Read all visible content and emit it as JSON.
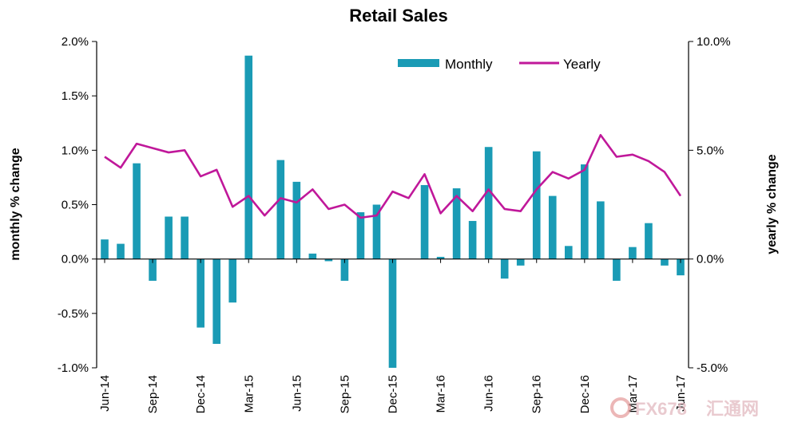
{
  "chart_data": {
    "type": "bar+line",
    "title": "Retail Sales",
    "ylabel_left": "monthly % change",
    "ylabel_right": "yearly % change",
    "ylim_left": [
      -1.0,
      2.0
    ],
    "ylim_right": [
      -5.0,
      10.0
    ],
    "yticks_left": [
      "2.0%",
      "1.5%",
      "1.0%",
      "0.5%",
      "0.0%",
      "-0.5%",
      "-1.0%"
    ],
    "yticks_right": [
      "10.0%",
      "5.0%",
      "0.0%",
      "-5.0%"
    ],
    "x_tick_labels": [
      "Jun-14",
      "Sep-14",
      "Dec-14",
      "Mar-15",
      "Jun-15",
      "Sep-15",
      "Dec-15",
      "Mar-16",
      "Jun-16",
      "Sep-16",
      "Dec-16",
      "Mar-17",
      "Jun-17"
    ],
    "categories": [
      "Jun-14",
      "Jul-14",
      "Aug-14",
      "Sep-14",
      "Oct-14",
      "Nov-14",
      "Dec-14",
      "Jan-15",
      "Feb-15",
      "Mar-15",
      "Apr-15",
      "May-15",
      "Jun-15",
      "Jul-15",
      "Aug-15",
      "Sep-15",
      "Oct-15",
      "Nov-15",
      "Dec-15",
      "Jan-16",
      "Feb-16",
      "Mar-16",
      "Apr-16",
      "May-16",
      "Jun-16",
      "Jul-16",
      "Aug-16",
      "Sep-16",
      "Oct-16",
      "Nov-16",
      "Dec-16",
      "Jan-17",
      "Feb-17",
      "Mar-17",
      "Apr-17",
      "May-17",
      "Jun-17"
    ],
    "legend_position": "top-right",
    "grid": false,
    "series": [
      {
        "name": "Monthly",
        "type": "bar",
        "axis": "left",
        "color": "#1a9bb5",
        "values": [
          0.18,
          0.14,
          0.88,
          -0.2,
          0.39,
          0.39,
          -0.63,
          -0.78,
          -0.4,
          1.87,
          0.0,
          0.91,
          0.71,
          0.05,
          -0.02,
          -0.2,
          0.43,
          0.5,
          -1.0,
          0.0,
          0.68,
          0.02,
          0.65,
          0.35,
          1.03,
          -0.18,
          -0.06,
          0.99,
          0.58,
          0.12,
          0.87,
          0.53,
          -0.2,
          0.11,
          0.33,
          -0.06,
          -0.15
        ]
      },
      {
        "name": "Yearly",
        "type": "line",
        "axis": "right",
        "color": "#c0189a",
        "values": [
          4.7,
          4.2,
          5.3,
          5.1,
          4.9,
          5.0,
          3.8,
          4.1,
          2.4,
          2.9,
          2.0,
          2.8,
          2.6,
          3.2,
          2.3,
          2.5,
          1.9,
          2.0,
          3.1,
          2.8,
          3.9,
          2.1,
          2.9,
          2.2,
          3.2,
          2.3,
          2.2,
          3.2,
          4.0,
          3.7,
          4.1,
          5.7,
          4.7,
          4.8,
          4.5,
          4.0,
          2.9
        ]
      }
    ]
  },
  "watermark": {
    "text": "FX678",
    "cn_text": "汇通网",
    "color": "#d9a0a8"
  }
}
